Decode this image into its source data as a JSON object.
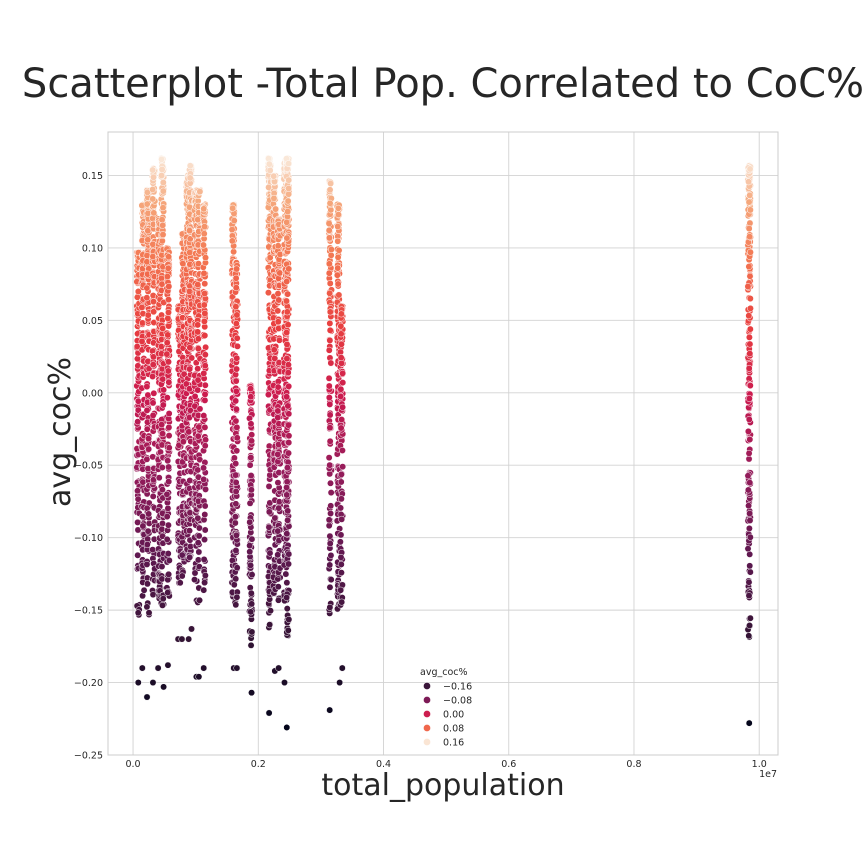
{
  "chart_data": {
    "type": "scatter",
    "title": "Scatterplot -Total Pop. Correlated to CoC%",
    "xlabel": "total_population",
    "ylabel": "avg_coc%",
    "x_offset_label": "1e7",
    "xlim": [
      -0.04,
      1.03
    ],
    "ylim": [
      -0.25,
      0.18
    ],
    "x_ticks": [
      0.0,
      0.2,
      0.4,
      0.6,
      0.8,
      1.0
    ],
    "x_tick_labels": [
      "0.0",
      "0.2",
      "0.4",
      "0.6",
      "0.8",
      "1.0"
    ],
    "y_ticks": [
      -0.25,
      -0.2,
      -0.15,
      -0.1,
      -0.05,
      0.0,
      0.05,
      0.1,
      0.15
    ],
    "y_tick_labels": [
      "−0.25",
      "−0.20",
      "−0.15",
      "−0.10",
      "−0.05",
      "0.00",
      "0.05",
      "0.10",
      "0.15"
    ],
    "grid": true,
    "hue": "avg_coc%",
    "palette": "rocket",
    "hue_range": [
      -0.23,
      0.163
    ],
    "legend": {
      "title": "avg_coc%",
      "placement": "lower-center",
      "entries": [
        {
          "label": "−0.16",
          "value": -0.16
        },
        {
          "label": "−0.08",
          "value": -0.08
        },
        {
          "label": "0.00",
          "value": 0.0
        },
        {
          "label": "0.08",
          "value": 0.08
        },
        {
          "label": "0.16",
          "value": 0.16
        }
      ]
    },
    "columns": [
      {
        "x": 0.008,
        "ymin": -0.2,
        "ymax": 0.097,
        "count": 120
      },
      {
        "x": 0.016,
        "ymin": -0.19,
        "ymax": 0.13,
        "count": 140
      },
      {
        "x": 0.024,
        "ymin": -0.21,
        "ymax": 0.14,
        "count": 150
      },
      {
        "x": 0.033,
        "ymin": -0.2,
        "ymax": 0.155,
        "count": 150
      },
      {
        "x": 0.042,
        "ymin": -0.19,
        "ymax": 0.12,
        "count": 150
      },
      {
        "x": 0.047,
        "ymin": -0.203,
        "ymax": 0.162,
        "count": 150
      },
      {
        "x": 0.056,
        "ymin": -0.188,
        "ymax": 0.1,
        "count": 130
      },
      {
        "x": 0.074,
        "ymin": -0.17,
        "ymax": 0.06,
        "count": 110
      },
      {
        "x": 0.08,
        "ymin": -0.17,
        "ymax": 0.11,
        "count": 140
      },
      {
        "x": 0.087,
        "ymin": -0.17,
        "ymax": 0.15,
        "count": 150
      },
      {
        "x": 0.092,
        "ymin": -0.163,
        "ymax": 0.157,
        "count": 150
      },
      {
        "x": 0.1,
        "ymin": -0.196,
        "ymax": 0.14,
        "count": 140
      },
      {
        "x": 0.105,
        "ymin": -0.196,
        "ymax": 0.14,
        "count": 120
      },
      {
        "x": 0.114,
        "ymin": -0.19,
        "ymax": 0.13,
        "count": 110
      },
      {
        "x": 0.16,
        "ymin": -0.19,
        "ymax": 0.13,
        "count": 140
      },
      {
        "x": 0.165,
        "ymin": -0.19,
        "ymax": 0.09,
        "count": 120
      },
      {
        "x": 0.188,
        "ymin": -0.207,
        "ymax": 0.005,
        "count": 120
      },
      {
        "x": 0.218,
        "ymin": -0.221,
        "ymax": 0.162,
        "count": 180
      },
      {
        "x": 0.226,
        "ymin": -0.192,
        "ymax": 0.15,
        "count": 170
      },
      {
        "x": 0.233,
        "ymin": -0.19,
        "ymax": 0.12,
        "count": 150
      },
      {
        "x": 0.243,
        "ymin": -0.2,
        "ymax": 0.16,
        "count": 200
      },
      {
        "x": 0.247,
        "ymin": -0.231,
        "ymax": 0.162,
        "count": 200
      },
      {
        "x": 0.315,
        "ymin": -0.219,
        "ymax": 0.146,
        "count": 130
      },
      {
        "x": 0.328,
        "ymin": -0.2,
        "ymax": 0.13,
        "count": 140
      },
      {
        "x": 0.333,
        "ymin": -0.19,
        "ymax": 0.06,
        "count": 110
      },
      {
        "x": 0.984,
        "ymin": -0.228,
        "ymax": 0.157,
        "count": 230
      }
    ]
  }
}
